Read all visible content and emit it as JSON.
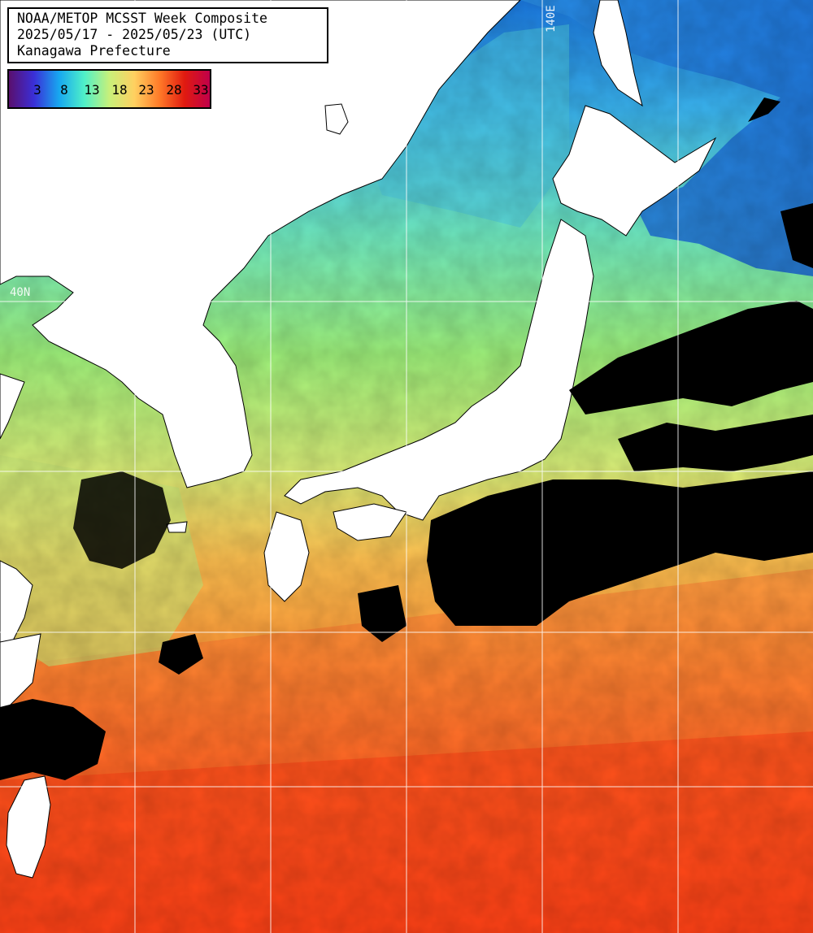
{
  "title": {
    "line1": "NOAA/METOP MCSST Week Composite",
    "line2": "2025/05/17 - 2025/05/23 (UTC)",
    "line3": "Kanagawa Prefecture"
  },
  "legend": {
    "ticks": [
      "3",
      "8",
      "13",
      "18",
      "23",
      "28",
      "33"
    ],
    "colors": [
      "#5a0f6e",
      "#3a2fd8",
      "#17a8f0",
      "#4ff0c8",
      "#c8f07a",
      "#ffd060",
      "#ff7a28",
      "#e01a10",
      "#c0004a"
    ]
  },
  "grid": {
    "lon_label": "140E",
    "lat_label": "40N"
  },
  "colors": {
    "cold_sea": "#1f7fe0",
    "cool_sea": "#47c8e8",
    "mid_sea": "#8ef08a",
    "warm_sea": "#ff9a3c",
    "hot_sea": "#ff4a1e",
    "land": "#ffffff",
    "cloud": "#000000"
  }
}
